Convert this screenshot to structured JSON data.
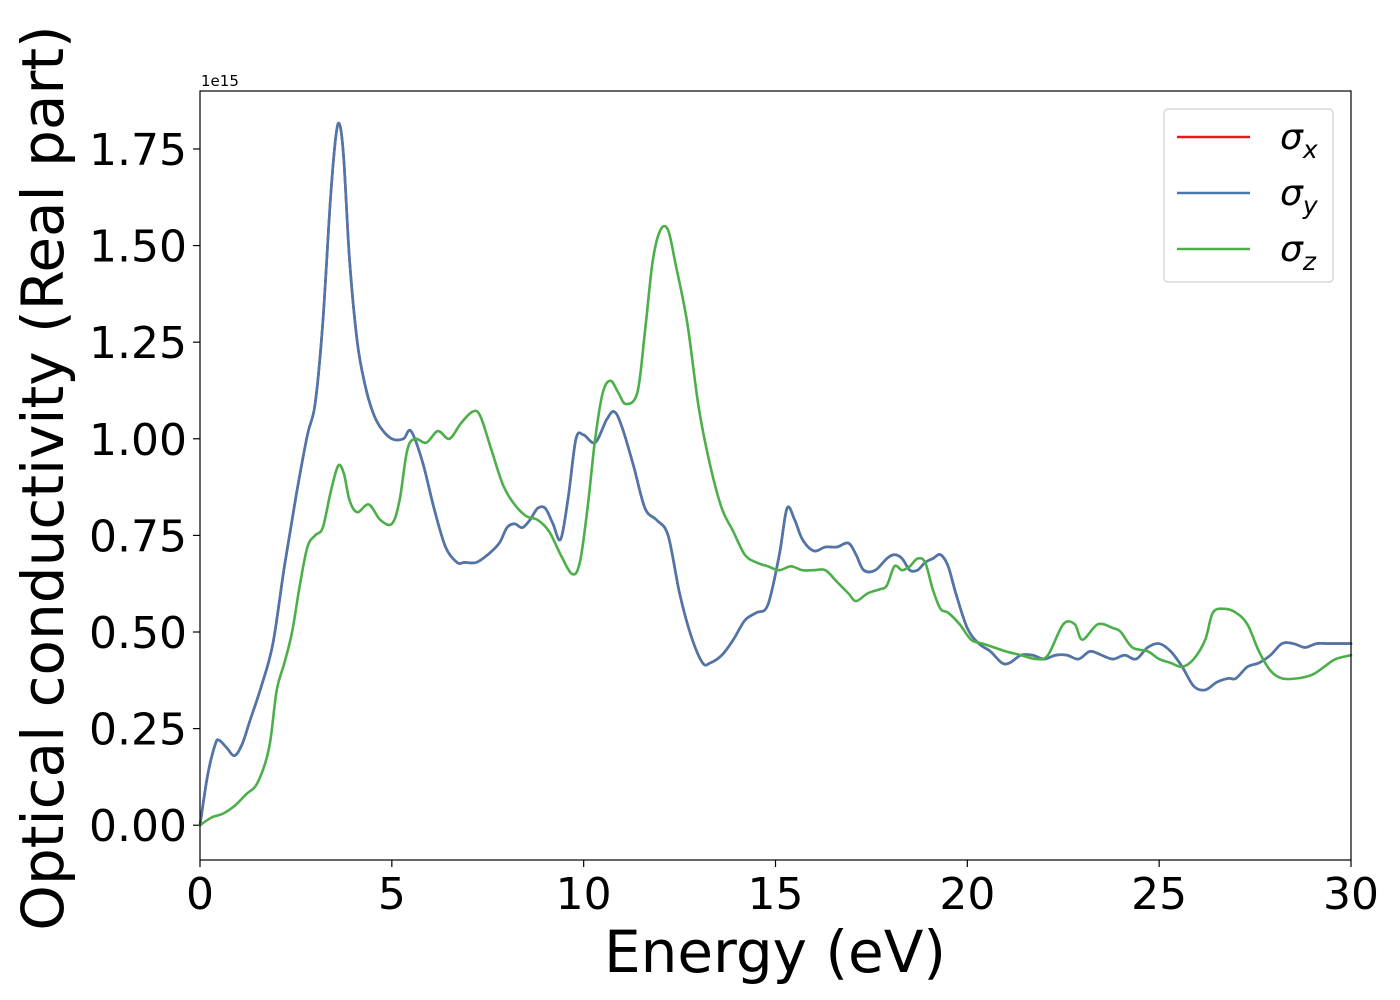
{
  "chart_data": {
    "type": "line",
    "xlabel": "Energy (eV)",
    "ylabel": "Optical conductivity (Real part)",
    "offset_text": "1e15",
    "xlim": [
      0,
      30
    ],
    "ylim": [
      -0.09,
      1.9
    ],
    "x_ticks": [
      0,
      5,
      10,
      15,
      20,
      25,
      30
    ],
    "x_tick_labels": [
      "0",
      "5",
      "10",
      "15",
      "20",
      "25",
      "30"
    ],
    "y_ticks": [
      0.0,
      0.25,
      0.5,
      0.75,
      1.0,
      1.25,
      1.5,
      1.75
    ],
    "y_tick_labels": [
      "0.00",
      "0.25",
      "0.50",
      "0.75",
      "1.00",
      "1.25",
      "1.50",
      "1.75"
    ],
    "grid": false,
    "legend_position": "top-right",
    "series": [
      {
        "name": "σx",
        "name_base": "σ",
        "name_sub": "x",
        "color": "#e41a1c",
        "x": [
          0,
          0.2,
          0.4,
          0.5,
          0.7,
          0.9,
          1.1,
          1.3,
          1.6,
          1.9,
          2.2,
          2.5,
          2.8,
          3.0,
          3.2,
          3.4,
          3.55,
          3.65,
          3.75,
          3.9,
          4.1,
          4.3,
          4.5,
          4.7,
          5.0,
          5.3,
          5.5,
          5.8,
          6.1,
          6.4,
          6.7,
          6.9,
          7.2,
          7.5,
          7.8,
          8.0,
          8.2,
          8.4,
          8.6,
          8.8,
          9.0,
          9.2,
          9.4,
          9.6,
          9.8,
          10.0,
          10.3,
          10.6,
          10.8,
          11.0,
          11.3,
          11.6,
          11.9,
          12.2,
          12.5,
          12.8,
          13.1,
          13.3,
          13.6,
          13.9,
          14.2,
          14.5,
          14.8,
          15.1,
          15.3,
          15.5,
          15.7,
          16.0,
          16.3,
          16.6,
          16.9,
          17.1,
          17.3,
          17.6,
          17.9,
          18.1,
          18.3,
          18.5,
          18.7,
          18.9,
          19.1,
          19.3,
          19.5,
          19.7,
          20.0,
          20.3,
          20.6,
          20.9,
          21.1,
          21.4,
          21.7,
          22.0,
          22.3,
          22.6,
          22.9,
          23.2,
          23.5,
          23.8,
          24.1,
          24.4,
          24.7,
          25.0,
          25.3,
          25.6,
          25.9,
          26.2,
          26.5,
          26.8,
          27.0,
          27.3,
          27.6,
          27.9,
          28.2,
          28.5,
          28.8,
          29.1,
          29.4,
          29.7,
          30.0
        ],
        "y": [
          0.0,
          0.13,
          0.21,
          0.22,
          0.2,
          0.18,
          0.21,
          0.27,
          0.36,
          0.47,
          0.67,
          0.85,
          1.01,
          1.09,
          1.3,
          1.62,
          1.79,
          1.81,
          1.72,
          1.46,
          1.25,
          1.14,
          1.07,
          1.03,
          1.0,
          1.0,
          1.02,
          0.94,
          0.82,
          0.72,
          0.68,
          0.68,
          0.68,
          0.7,
          0.73,
          0.77,
          0.78,
          0.77,
          0.79,
          0.82,
          0.82,
          0.78,
          0.74,
          0.85,
          1.0,
          1.01,
          0.99,
          1.05,
          1.07,
          1.03,
          0.93,
          0.82,
          0.79,
          0.75,
          0.6,
          0.49,
          0.42,
          0.42,
          0.44,
          0.48,
          0.53,
          0.55,
          0.57,
          0.7,
          0.82,
          0.79,
          0.74,
          0.71,
          0.72,
          0.72,
          0.73,
          0.7,
          0.66,
          0.66,
          0.69,
          0.7,
          0.69,
          0.66,
          0.66,
          0.68,
          0.69,
          0.7,
          0.67,
          0.6,
          0.51,
          0.47,
          0.45,
          0.42,
          0.42,
          0.44,
          0.44,
          0.43,
          0.44,
          0.44,
          0.43,
          0.45,
          0.44,
          0.43,
          0.44,
          0.43,
          0.46,
          0.47,
          0.45,
          0.41,
          0.36,
          0.35,
          0.37,
          0.38,
          0.38,
          0.41,
          0.42,
          0.44,
          0.47,
          0.47,
          0.46,
          0.47,
          0.47,
          0.47,
          0.47
        ]
      },
      {
        "name": "σy",
        "name_base": "σ",
        "name_sub": "y",
        "color": "#4a78ad",
        "x": [
          0,
          0.2,
          0.4,
          0.5,
          0.7,
          0.9,
          1.1,
          1.3,
          1.6,
          1.9,
          2.2,
          2.5,
          2.8,
          3.0,
          3.2,
          3.4,
          3.55,
          3.65,
          3.75,
          3.9,
          4.1,
          4.3,
          4.5,
          4.7,
          5.0,
          5.3,
          5.5,
          5.8,
          6.1,
          6.4,
          6.7,
          6.9,
          7.2,
          7.5,
          7.8,
          8.0,
          8.2,
          8.4,
          8.6,
          8.8,
          9.0,
          9.2,
          9.4,
          9.6,
          9.8,
          10.0,
          10.3,
          10.6,
          10.8,
          11.0,
          11.3,
          11.6,
          11.9,
          12.2,
          12.5,
          12.8,
          13.1,
          13.3,
          13.6,
          13.9,
          14.2,
          14.5,
          14.8,
          15.1,
          15.3,
          15.5,
          15.7,
          16.0,
          16.3,
          16.6,
          16.9,
          17.1,
          17.3,
          17.6,
          17.9,
          18.1,
          18.3,
          18.5,
          18.7,
          18.9,
          19.1,
          19.3,
          19.5,
          19.7,
          20.0,
          20.3,
          20.6,
          20.9,
          21.1,
          21.4,
          21.7,
          22.0,
          22.3,
          22.6,
          22.9,
          23.2,
          23.5,
          23.8,
          24.1,
          24.4,
          24.7,
          25.0,
          25.3,
          25.6,
          25.9,
          26.2,
          26.5,
          26.8,
          27.0,
          27.3,
          27.6,
          27.9,
          28.2,
          28.5,
          28.8,
          29.1,
          29.4,
          29.7,
          30.0
        ],
        "y": [
          0.0,
          0.13,
          0.21,
          0.22,
          0.2,
          0.18,
          0.21,
          0.27,
          0.36,
          0.47,
          0.67,
          0.85,
          1.01,
          1.09,
          1.3,
          1.62,
          1.79,
          1.81,
          1.72,
          1.46,
          1.25,
          1.14,
          1.07,
          1.03,
          1.0,
          1.0,
          1.02,
          0.94,
          0.82,
          0.72,
          0.68,
          0.68,
          0.68,
          0.7,
          0.73,
          0.77,
          0.78,
          0.77,
          0.79,
          0.82,
          0.82,
          0.78,
          0.74,
          0.85,
          1.0,
          1.01,
          0.99,
          1.05,
          1.07,
          1.03,
          0.93,
          0.82,
          0.79,
          0.75,
          0.6,
          0.49,
          0.42,
          0.42,
          0.44,
          0.48,
          0.53,
          0.55,
          0.57,
          0.7,
          0.82,
          0.79,
          0.74,
          0.71,
          0.72,
          0.72,
          0.73,
          0.7,
          0.66,
          0.66,
          0.69,
          0.7,
          0.69,
          0.66,
          0.66,
          0.68,
          0.69,
          0.7,
          0.67,
          0.6,
          0.51,
          0.47,
          0.45,
          0.42,
          0.42,
          0.44,
          0.44,
          0.43,
          0.44,
          0.44,
          0.43,
          0.45,
          0.44,
          0.43,
          0.44,
          0.43,
          0.46,
          0.47,
          0.45,
          0.41,
          0.36,
          0.35,
          0.37,
          0.38,
          0.38,
          0.41,
          0.42,
          0.44,
          0.47,
          0.47,
          0.46,
          0.47,
          0.47,
          0.47,
          0.47
        ]
      },
      {
        "name": "σz",
        "name_base": "σ",
        "name_sub": "z",
        "color": "#4daf4a",
        "x": [
          0,
          0.3,
          0.6,
          0.9,
          1.2,
          1.5,
          1.8,
          2.0,
          2.2,
          2.4,
          2.6,
          2.8,
          3.0,
          3.2,
          3.4,
          3.6,
          3.75,
          3.9,
          4.1,
          4.4,
          4.7,
          5.0,
          5.2,
          5.4,
          5.6,
          5.9,
          6.2,
          6.5,
          6.8,
          7.1,
          7.3,
          7.6,
          7.9,
          8.2,
          8.5,
          8.8,
          9.1,
          9.4,
          9.7,
          9.9,
          10.1,
          10.3,
          10.5,
          10.7,
          10.9,
          11.1,
          11.4,
          11.6,
          11.8,
          12.0,
          12.2,
          12.4,
          12.7,
          13.0,
          13.3,
          13.6,
          13.9,
          14.2,
          14.5,
          14.8,
          15.1,
          15.4,
          15.7,
          16.0,
          16.3,
          16.6,
          16.9,
          17.1,
          17.4,
          17.7,
          17.9,
          18.1,
          18.3,
          18.5,
          18.7,
          18.9,
          19.1,
          19.3,
          19.5,
          19.8,
          20.1,
          20.4,
          20.7,
          21.0,
          21.4,
          21.8,
          22.1,
          22.5,
          22.8,
          23.0,
          23.4,
          23.8,
          24.0,
          24.3,
          24.7,
          25.0,
          25.3,
          25.6,
          25.9,
          26.2,
          26.4,
          26.7,
          27.0,
          27.3,
          27.6,
          27.9,
          28.2,
          28.6,
          29.0,
          29.3,
          29.6,
          30.0
        ],
        "y": [
          0.0,
          0.02,
          0.03,
          0.05,
          0.08,
          0.11,
          0.2,
          0.35,
          0.42,
          0.5,
          0.62,
          0.72,
          0.75,
          0.77,
          0.86,
          0.93,
          0.91,
          0.84,
          0.81,
          0.83,
          0.79,
          0.78,
          0.84,
          0.97,
          1.0,
          0.99,
          1.02,
          1.0,
          1.04,
          1.07,
          1.06,
          0.97,
          0.88,
          0.83,
          0.8,
          0.79,
          0.76,
          0.7,
          0.65,
          0.68,
          0.82,
          1.0,
          1.12,
          1.15,
          1.12,
          1.09,
          1.12,
          1.28,
          1.46,
          1.54,
          1.54,
          1.45,
          1.3,
          1.08,
          0.93,
          0.82,
          0.76,
          0.7,
          0.68,
          0.67,
          0.66,
          0.67,
          0.66,
          0.66,
          0.66,
          0.63,
          0.6,
          0.58,
          0.6,
          0.61,
          0.62,
          0.67,
          0.66,
          0.67,
          0.69,
          0.68,
          0.61,
          0.56,
          0.55,
          0.52,
          0.48,
          0.47,
          0.46,
          0.45,
          0.44,
          0.43,
          0.44,
          0.52,
          0.52,
          0.48,
          0.52,
          0.51,
          0.5,
          0.46,
          0.45,
          0.43,
          0.42,
          0.41,
          0.43,
          0.48,
          0.55,
          0.56,
          0.55,
          0.52,
          0.45,
          0.4,
          0.38,
          0.38,
          0.39,
          0.41,
          0.43,
          0.44
        ]
      }
    ]
  }
}
